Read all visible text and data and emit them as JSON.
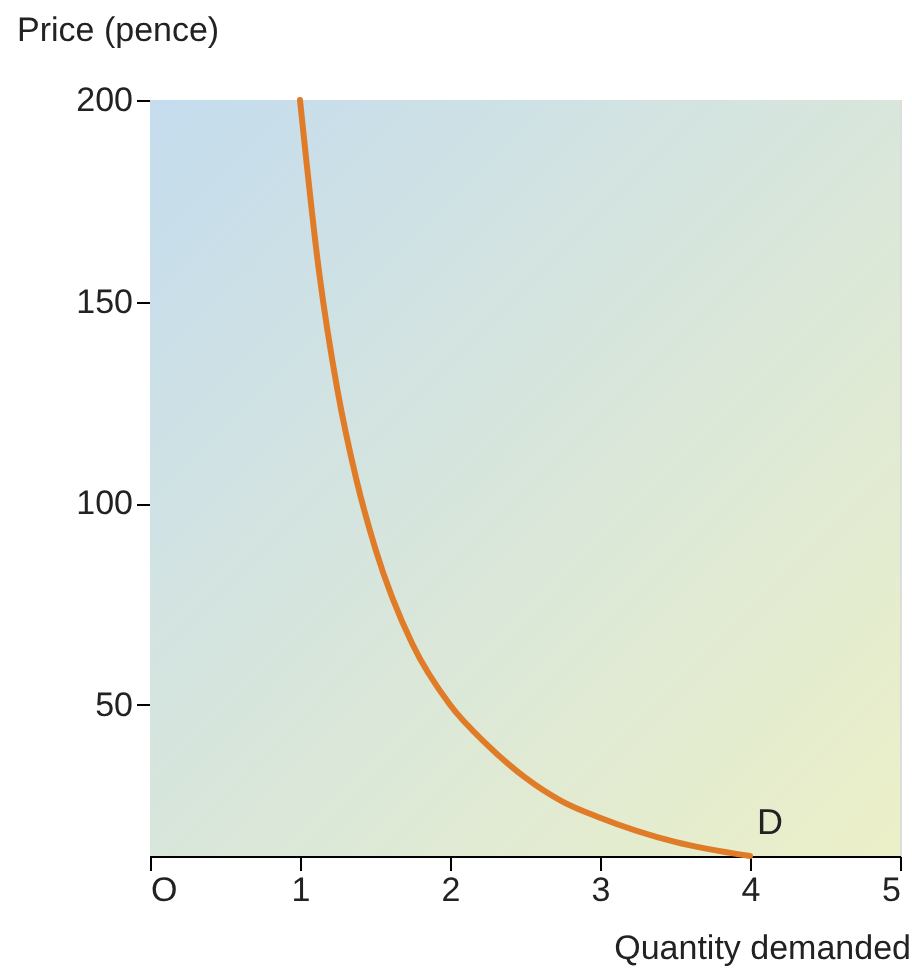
{
  "chart_data": {
    "type": "line",
    "xlabel": "Quantity demanded",
    "ylabel": "Price (pence)",
    "x": [
      1,
      1.125,
      1.25,
      1.375,
      1.5,
      1.75,
      2,
      2.25,
      2.5,
      2.75,
      3,
      3.5,
      4
    ],
    "series": [
      {
        "color": "#e07b28",
        "values": [
          200,
          158,
          128,
          106,
          89,
          65,
          50,
          40,
          32,
          26,
          22,
          16,
          12.5
        ]
      }
    ],
    "xlim": [
      0,
      5
    ],
    "ylim": [
      12.5,
      200
    ],
    "xticks": [
      {
        "value": 0,
        "label": "O"
      },
      1,
      2,
      3,
      4,
      5
    ],
    "yticks": [
      50,
      100,
      150,
      200
    ],
    "annotations": [
      {
        "text": "D",
        "x": 4,
        "y": 12.5
      }
    ],
    "marker": "none",
    "line_style": "solid"
  }
}
